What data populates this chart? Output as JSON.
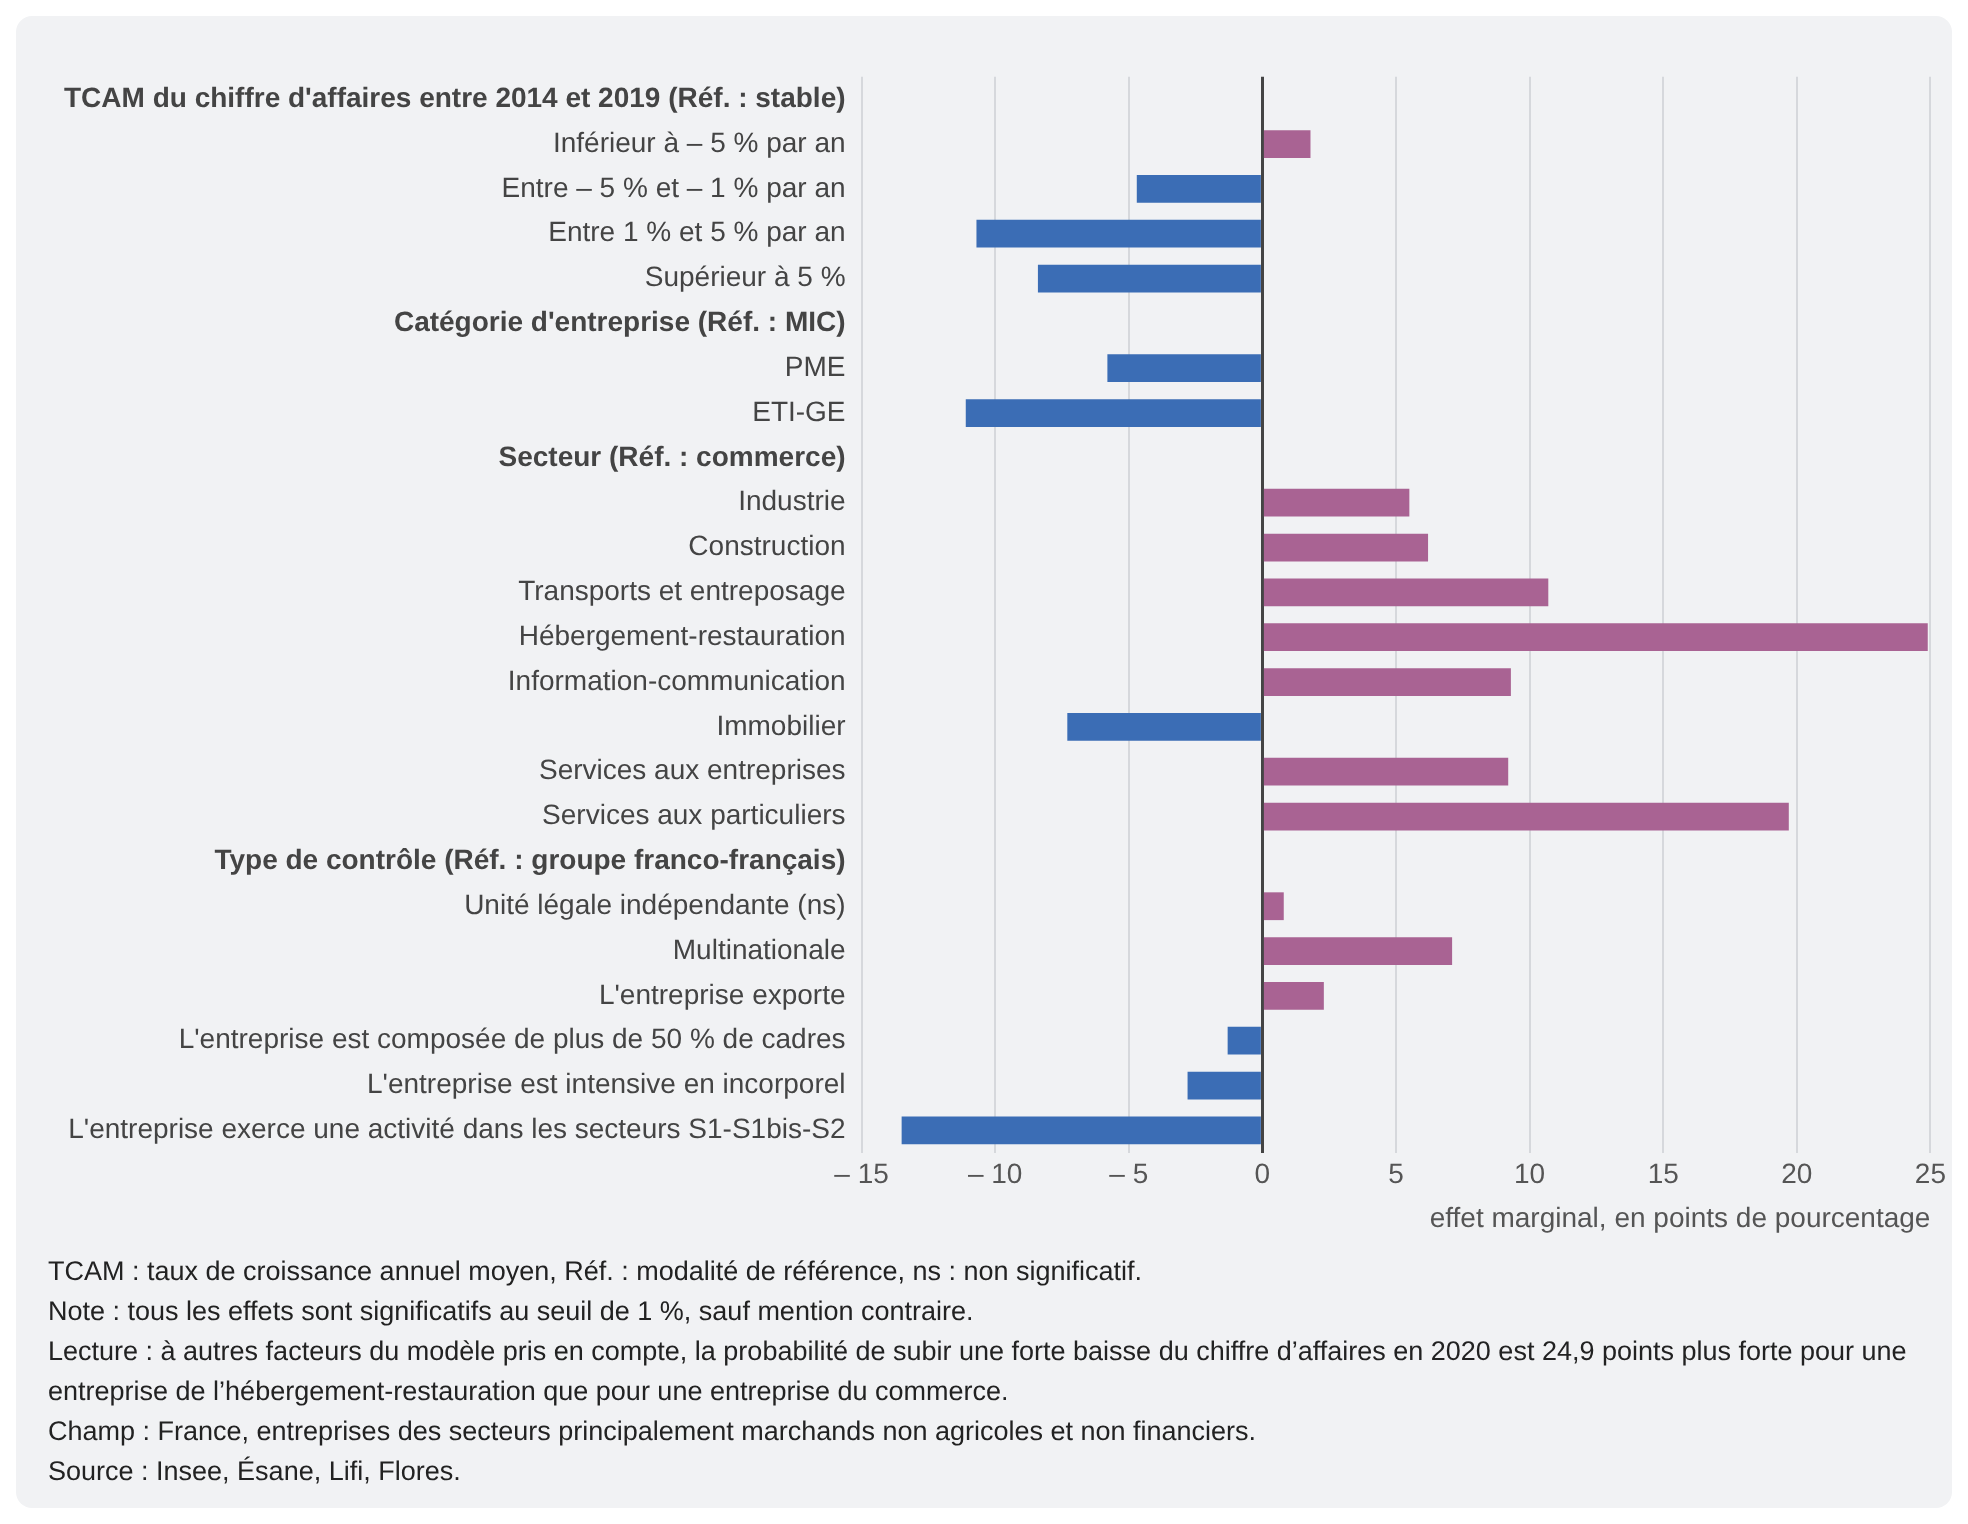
{
  "chart_data": {
    "type": "bar",
    "orientation": "horizontal",
    "categories": [
      "TCAM du chiffre d'affaires entre 2014 et 2019 (Réf. : stable)",
      "Inférieur à – 5 % par an",
      "Entre – 5 % et – 1 % par an",
      "Entre 1 % et 5 % par an",
      "Supérieur à 5 %",
      "Catégorie d'entreprise (Réf. : MIC)",
      "PME",
      "ETI-GE",
      "Secteur (Réf. : commerce)",
      "Industrie",
      "Construction",
      "Transports et entreposage",
      "Hébergement-restauration",
      "Information-communication",
      "Immobilier",
      "Services aux entreprises",
      "Services aux particuliers",
      "Type de contrôle (Réf. : groupe franco-français)",
      "Unité légale indépendante (ns)",
      "Multinationale",
      "L'entreprise exporte",
      "L'entreprise est composée de plus de 50 % de cadres",
      "L'entreprise est intensive en incorporel",
      "L'entreprise exerce une activité dans les secteurs S1-S1bis-S2"
    ],
    "values": [
      null,
      1.8,
      -4.7,
      -10.7,
      -8.4,
      null,
      -5.8,
      -11.1,
      null,
      5.5,
      6.2,
      10.7,
      24.9,
      9.3,
      -7.3,
      9.2,
      19.7,
      null,
      0.8,
      7.1,
      2.3,
      -1.3,
      -2.8,
      -13.5
    ],
    "colors": [
      null,
      "#a96393",
      "#3b6db5",
      "#3b6db5",
      "#3b6db5",
      null,
      "#3b6db5",
      "#3b6db5",
      null,
      "#a96393",
      "#a96393",
      "#a96393",
      "#a96393",
      "#a96393",
      "#3b6db5",
      "#a96393",
      "#a96393",
      null,
      "#a96393",
      "#a96393",
      "#a96393",
      "#3b6db5",
      "#3b6db5",
      "#3b6db5"
    ],
    "xlim": [
      -15,
      25
    ],
    "xticks": [
      {
        "value": -15,
        "label": "– 15"
      },
      {
        "value": -10,
        "label": "– 10"
      },
      {
        "value": -5,
        "label": "– 5"
      },
      0,
      5,
      10,
      15,
      20,
      25
    ],
    "xlabel": "effet marginal, en points de pourcentage",
    "grid": "x",
    "legend": false,
    "annotations": [
      "TCAM : taux de croissance annuel moyen, Réf. : modalité de référence, ns : non significatif.",
      "Note : tous les effets sont significatifs au seuil de 1 %, sauf mention contraire.",
      "Lecture : à autres facteurs du modèle pris en compte, la probabilité de subir une forte baisse du chiffre d’affaires en 2020 est 24,9 points plus forte pour une entreprise de l’hébergement-restauration que pour une entreprise du commerce.",
      "Champ : France, entreprises des secteurs principalement marchands non agricoles et non financiers.",
      "Source : Insee, Ésane, Lifi, Flores."
    ]
  }
}
